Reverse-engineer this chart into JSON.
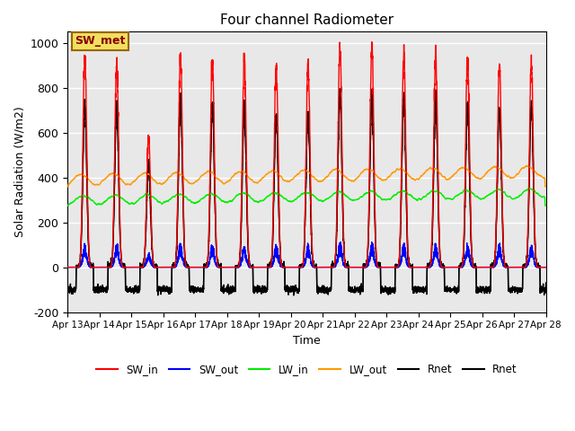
{
  "title": "Four channel Radiometer",
  "xlabel": "Time",
  "ylabel": "Solar Radiation (W/m2)",
  "ylim": [
    -200,
    1050
  ],
  "xlim": [
    0,
    360
  ],
  "background_color": "#e8e8e8",
  "annotation_text": "SW_met",
  "annotation_facecolor": "#f0e060",
  "annotation_edgecolor": "#996600",
  "annotation_textcolor": "#880000",
  "series": {
    "SW_in": {
      "color": "#ff0000",
      "lw": 1.0
    },
    "SW_out": {
      "color": "#0000ff",
      "lw": 1.0
    },
    "LW_in": {
      "color": "#00ee00",
      "lw": 1.0
    },
    "LW_out": {
      "color": "#ff9900",
      "lw": 1.0
    },
    "Rnet1": {
      "color": "#000000",
      "lw": 1.0
    },
    "Rnet2": {
      "color": "#000000",
      "lw": 1.0
    }
  },
  "xtick_labels": [
    "Apr 13",
    "Apr 14",
    "Apr 15",
    "Apr 16",
    "Apr 17",
    "Apr 18",
    "Apr 19",
    "Apr 20",
    "Apr 21",
    "Apr 22",
    "Apr 23",
    "Apr 24",
    "Apr 25",
    "Apr 26",
    "Apr 27",
    "Apr 28"
  ],
  "xtick_positions": [
    0,
    24,
    48,
    72,
    96,
    120,
    144,
    168,
    192,
    216,
    240,
    264,
    288,
    312,
    336,
    360
  ],
  "ytick_labels": [
    "-200",
    "0",
    "200",
    "400",
    "600",
    "800",
    "1000"
  ],
  "ytick_positions": [
    -200,
    0,
    200,
    400,
    600,
    800,
    1000
  ],
  "n_days": 15,
  "dt": 0.1,
  "day_rise": 6.5,
  "day_set": 19.5,
  "peak_hour": 13.0,
  "night_rnet": -100
}
